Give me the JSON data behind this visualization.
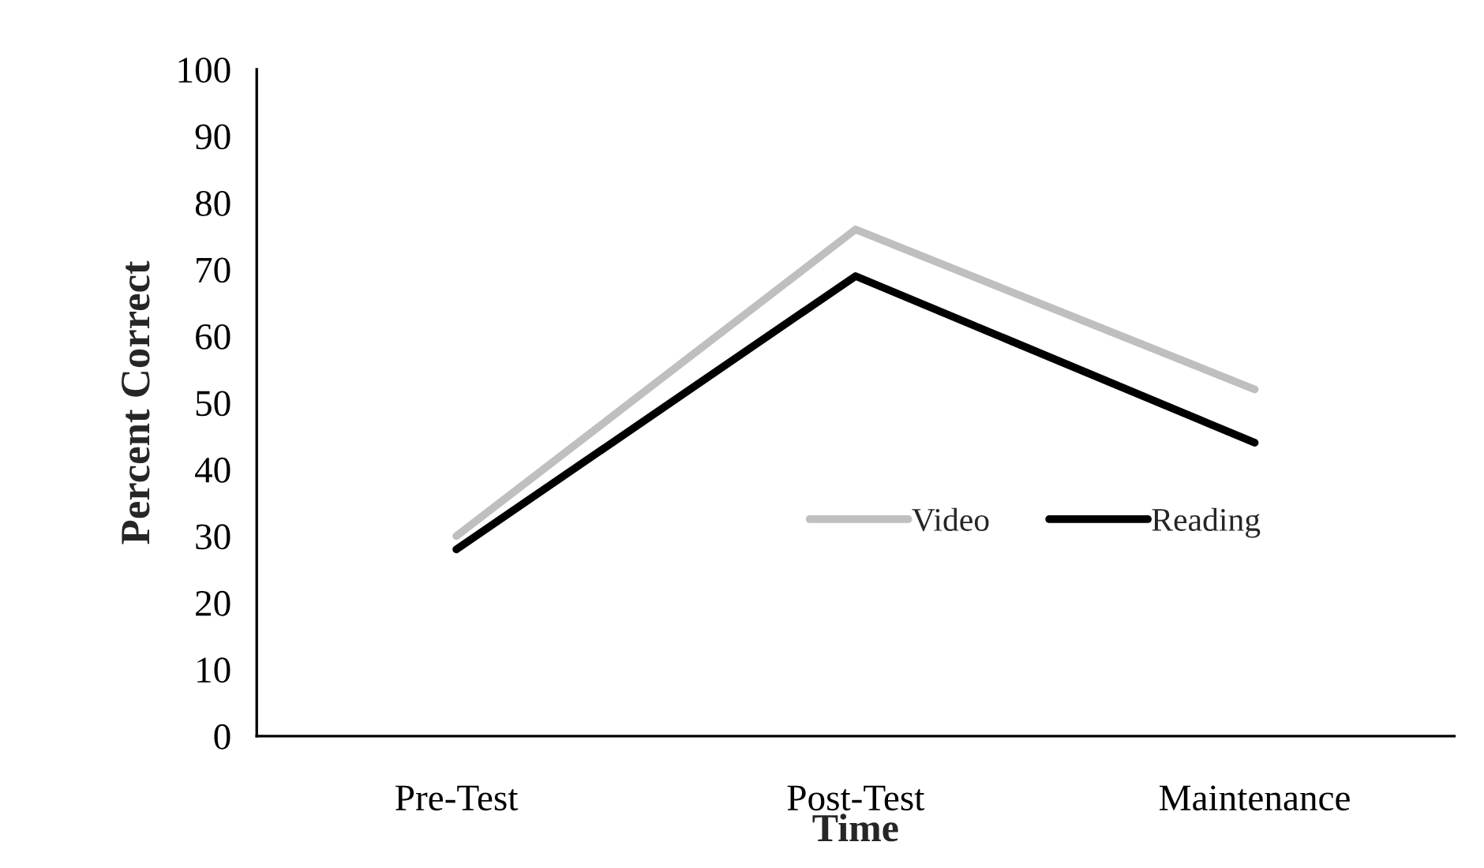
{
  "chart_data": {
    "type": "line",
    "xlabel": "Time",
    "ylabel": "Percent Correct",
    "categories": [
      "Pre-Test",
      "Post-Test",
      "Maintenance"
    ],
    "series": [
      {
        "name": "Video",
        "color": "#bfbfbf",
        "values": [
          30,
          76,
          52
        ]
      },
      {
        "name": "Reading",
        "color": "#000000",
        "values": [
          28,
          69,
          44
        ]
      }
    ],
    "ylim": [
      0,
      100
    ],
    "yticks": [
      0,
      10,
      20,
      30,
      40,
      50,
      60,
      70,
      80,
      90,
      100
    ],
    "grid": false,
    "legend": "center",
    "marker": "none",
    "line_style": "solid"
  }
}
